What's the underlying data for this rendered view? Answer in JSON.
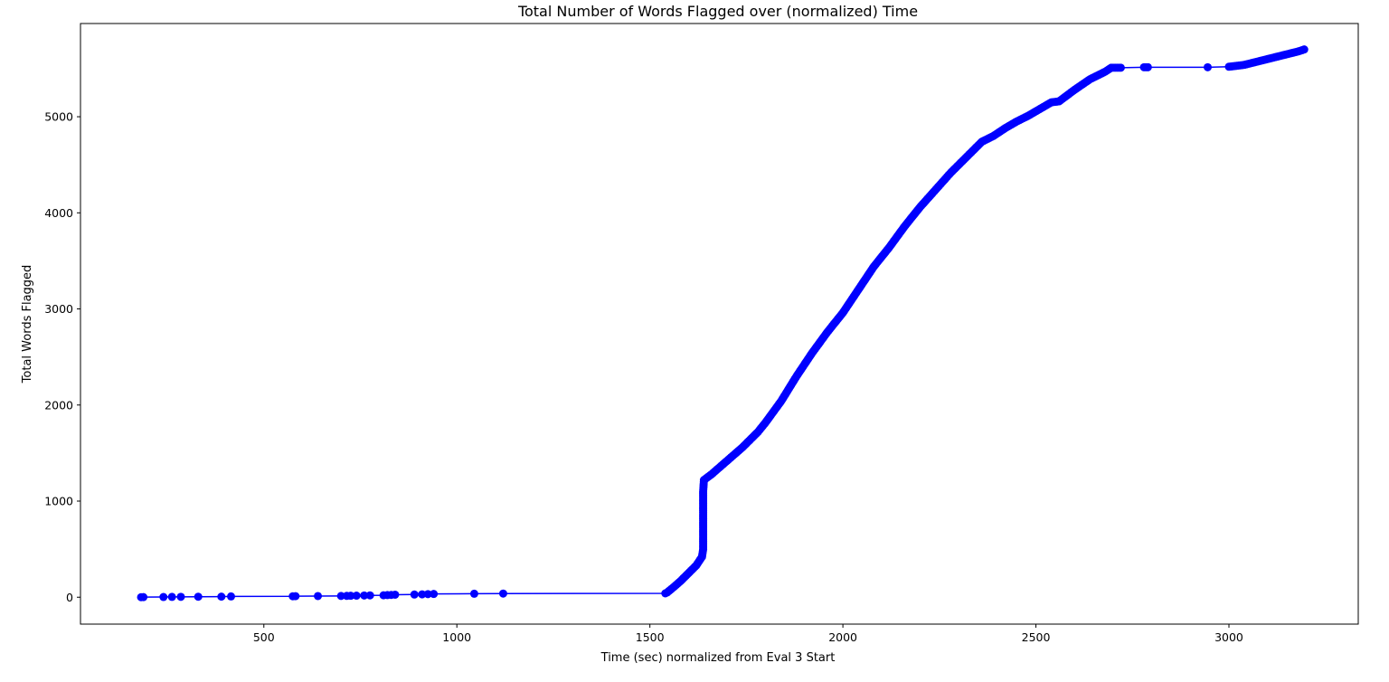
{
  "chart_data": {
    "type": "line",
    "title": "Total Number of Words Flagged over (normalized) Time",
    "xlabel": "Time (sec) normalized from Eval 3 Start",
    "ylabel": "Total Words Flagged",
    "xlim": [
      25,
      3335
    ],
    "ylim": [
      -280,
      5970
    ],
    "xticks": [
      500,
      1000,
      1500,
      2000,
      2500,
      3000
    ],
    "yticks": [
      0,
      1000,
      2000,
      3000,
      4000,
      5000
    ],
    "grid": false,
    "legend": "none",
    "color": "#0000ff",
    "series": [
      {
        "marker": "circle",
        "points": [
          [
            182,
            0
          ],
          [
            188,
            1
          ],
          [
            240,
            2
          ],
          [
            262,
            3
          ],
          [
            285,
            4
          ],
          [
            330,
            5
          ],
          [
            390,
            6
          ],
          [
            415,
            8
          ],
          [
            575,
            10
          ],
          [
            582,
            11
          ],
          [
            640,
            12
          ],
          [
            700,
            13
          ],
          [
            715,
            14
          ],
          [
            725,
            15
          ],
          [
            740,
            16
          ],
          [
            760,
            18
          ],
          [
            775,
            19
          ],
          [
            810,
            20
          ],
          [
            820,
            22
          ],
          [
            830,
            24
          ],
          [
            840,
            26
          ],
          [
            890,
            28
          ],
          [
            910,
            30
          ],
          [
            925,
            32
          ],
          [
            940,
            34
          ],
          [
            1045,
            36
          ],
          [
            1120,
            38
          ],
          [
            1540,
            40
          ],
          [
            1545,
            50
          ],
          [
            1560,
            100
          ],
          [
            1580,
            170
          ],
          [
            1600,
            250
          ],
          [
            1620,
            330
          ],
          [
            1635,
            420
          ],
          [
            1638,
            500
          ],
          [
            1638,
            700
          ],
          [
            1638,
            900
          ],
          [
            1638,
            1100
          ],
          [
            1640,
            1220
          ],
          [
            1660,
            1280
          ],
          [
            1700,
            1420
          ],
          [
            1740,
            1560
          ],
          [
            1780,
            1720
          ],
          [
            1800,
            1820
          ],
          [
            1840,
            2040
          ],
          [
            1880,
            2300
          ],
          [
            1920,
            2540
          ],
          [
            1960,
            2760
          ],
          [
            2000,
            2960
          ],
          [
            2040,
            3200
          ],
          [
            2080,
            3440
          ],
          [
            2120,
            3640
          ],
          [
            2160,
            3860
          ],
          [
            2200,
            4060
          ],
          [
            2240,
            4240
          ],
          [
            2280,
            4420
          ],
          [
            2320,
            4580
          ],
          [
            2360,
            4740
          ],
          [
            2390,
            4800
          ],
          [
            2420,
            4880
          ],
          [
            2450,
            4950
          ],
          [
            2480,
            5010
          ],
          [
            2510,
            5080
          ],
          [
            2540,
            5150
          ],
          [
            2560,
            5160
          ],
          [
            2600,
            5280
          ],
          [
            2640,
            5390
          ],
          [
            2680,
            5470
          ],
          [
            2695,
            5510
          ],
          [
            2720,
            5510
          ],
          [
            2780,
            5515
          ],
          [
            2790,
            5515
          ],
          [
            2945,
            5515
          ],
          [
            3000,
            5520
          ],
          [
            3040,
            5540
          ],
          [
            3080,
            5580
          ],
          [
            3120,
            5620
          ],
          [
            3160,
            5660
          ],
          [
            3180,
            5680
          ],
          [
            3195,
            5700
          ]
        ]
      }
    ]
  }
}
